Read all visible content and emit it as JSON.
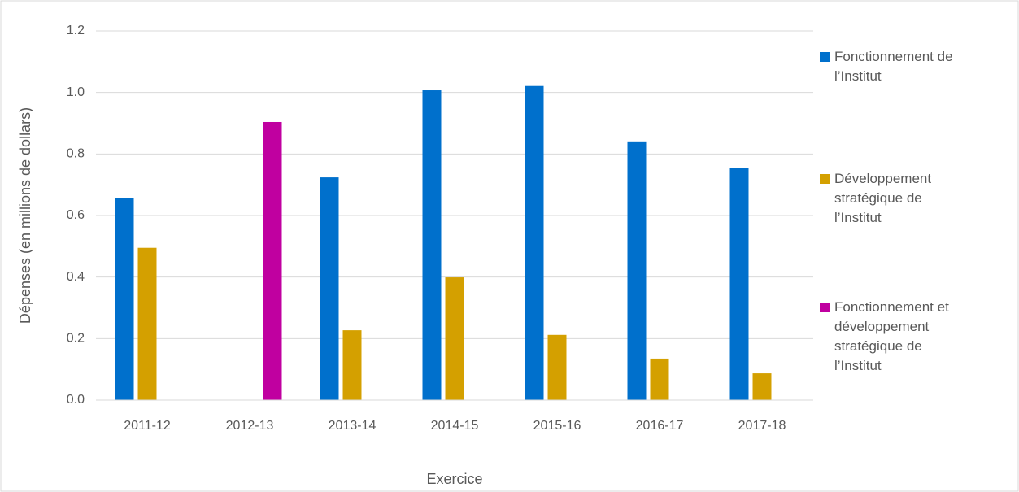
{
  "chart_data": {
    "type": "bar",
    "y_label": "Dépenses (en millions de dollars)",
    "x_label": "Exercice",
    "categories": [
      "2011-12",
      "2012-13",
      "2013-14",
      "2014-15",
      "2015-16",
      "2016-17",
      "2017-18"
    ],
    "series": [
      {
        "name": "Fonctionnement de l’Institut",
        "color": "#0070cc",
        "values": [
          0.656,
          null,
          0.724,
          1.007,
          1.021,
          0.841,
          0.754
        ]
      },
      {
        "name": "Développement stratégique de l’Institut",
        "color": "#d4a000",
        "values": [
          0.495,
          null,
          0.227,
          0.399,
          0.212,
          0.135,
          0.087
        ]
      },
      {
        "name": "Fonctionnement et développement stratégique de l’Institut",
        "color": "#c000a0",
        "values": [
          null,
          0.904,
          null,
          null,
          null,
          null,
          null
        ]
      }
    ],
    "ylim": [
      0,
      1.2
    ],
    "yticks": [
      {
        "value": 0,
        "label": "0.0"
      },
      0.2,
      0.4,
      0.6,
      0.8,
      {
        "value": 1,
        "label": "1.0"
      },
      1.2
    ],
    "grid": true
  }
}
